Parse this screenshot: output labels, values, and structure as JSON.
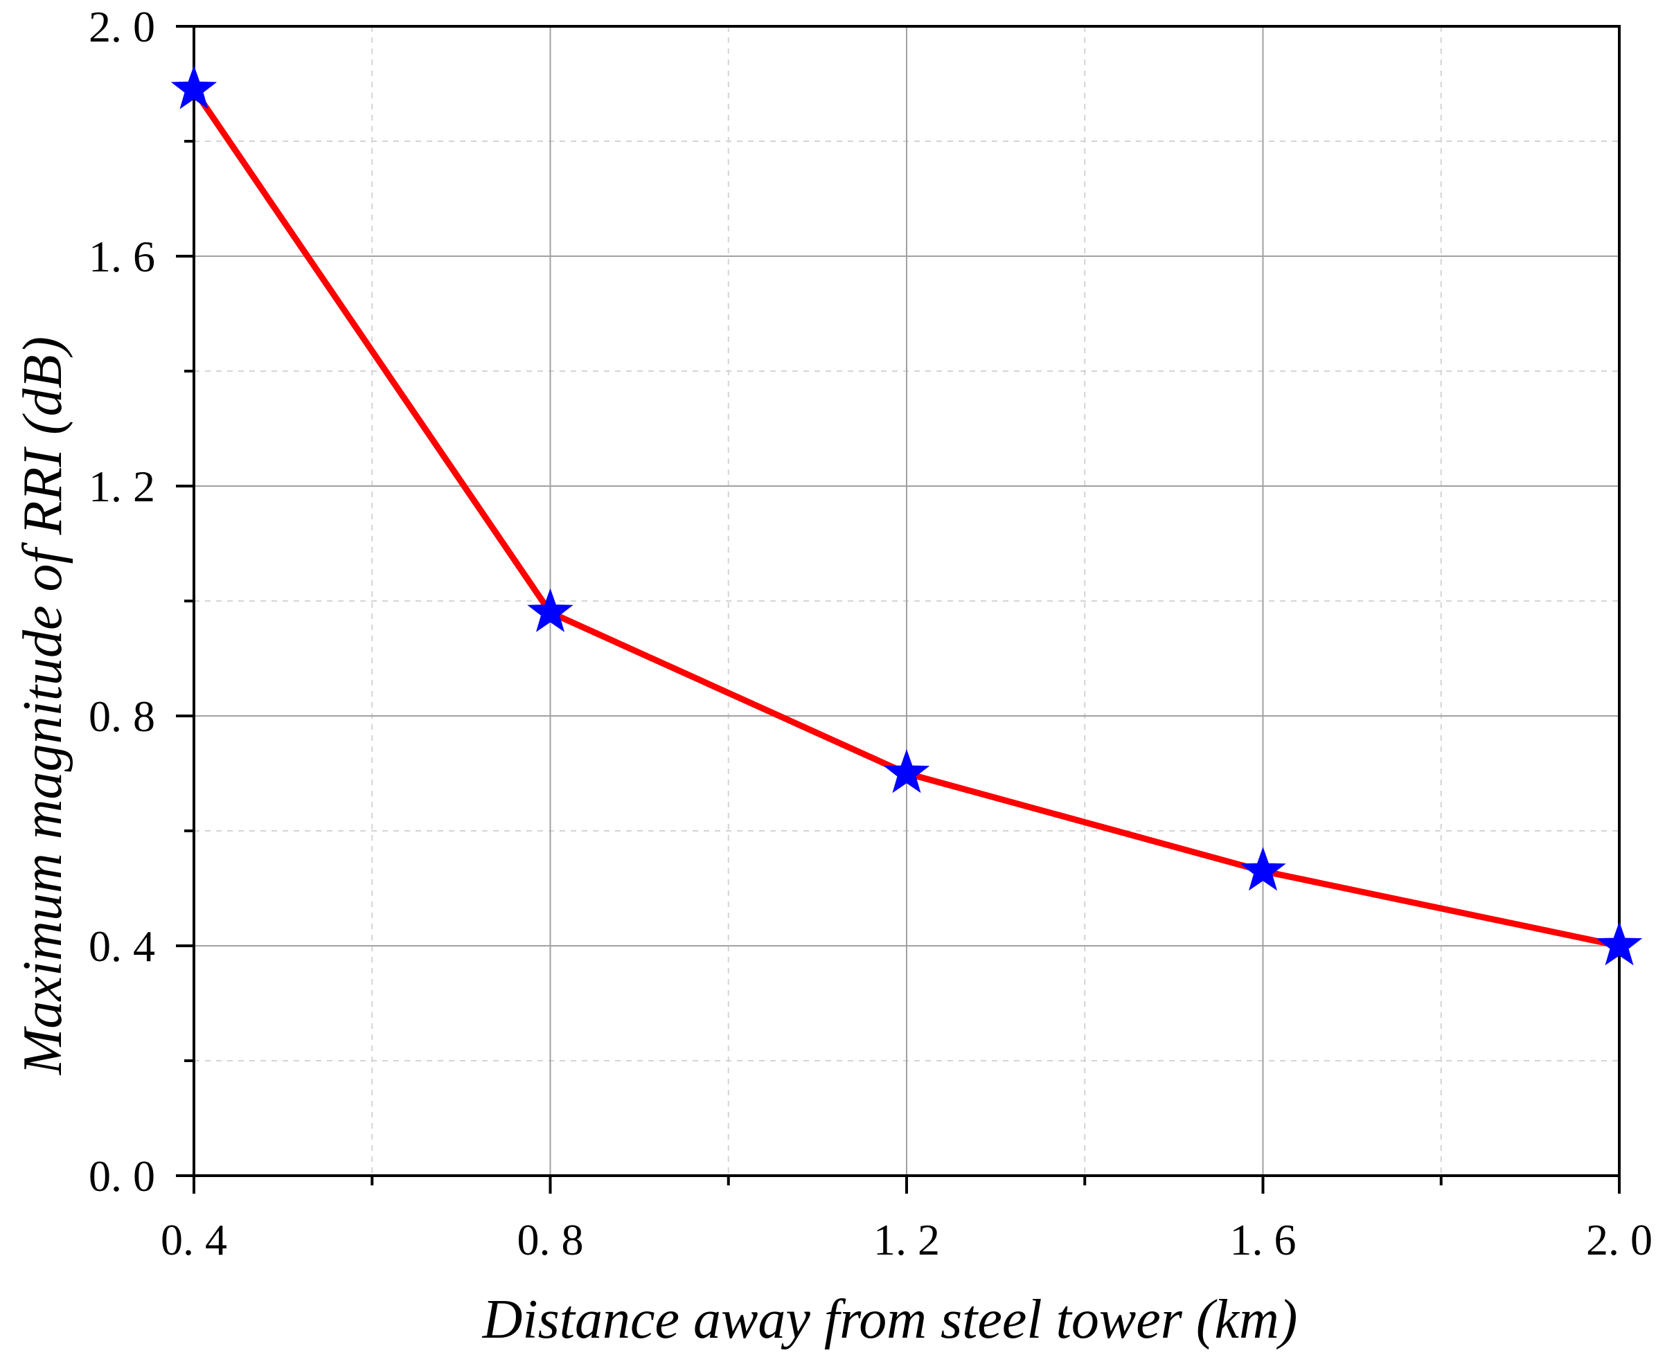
{
  "chart_data": {
    "type": "line",
    "title": "",
    "xlabel": "Distance away from steel tower (km)",
    "ylabel": "Maximum magnitude of RRI (dB)",
    "xlim": [
      0.4,
      2.0
    ],
    "ylim": [
      0.0,
      2.0
    ],
    "x_major_ticks": [
      0.4,
      0.8,
      1.2,
      1.6,
      2.0
    ],
    "x_tick_labels": [
      "0. 4",
      "0. 8",
      "1. 2",
      "1. 6",
      "2. 0"
    ],
    "x_minor_ticks": [
      0.6,
      1.0,
      1.4,
      1.8
    ],
    "y_major_ticks": [
      0.0,
      0.4,
      0.8,
      1.2,
      1.6,
      2.0
    ],
    "y_tick_labels": [
      "0. 0",
      "0. 4",
      "0. 8",
      "1. 2",
      "1. 6",
      "2. 0"
    ],
    "y_minor_ticks": [
      0.2,
      0.6,
      1.0,
      1.4,
      1.8
    ],
    "grid": true,
    "series": [
      {
        "name": "Maximum magnitude of RRI",
        "x": [
          0.4,
          0.8,
          1.2,
          1.6,
          2.0
        ],
        "y": [
          1.89,
          0.98,
          0.7,
          0.53,
          0.4
        ],
        "line_color": "#ff0000",
        "marker": "star",
        "marker_color": "#0000ff"
      }
    ]
  },
  "colors": {
    "major_grid": "#a0a0a0",
    "minor_grid": "#d4d4d4",
    "axis": "#000000"
  }
}
